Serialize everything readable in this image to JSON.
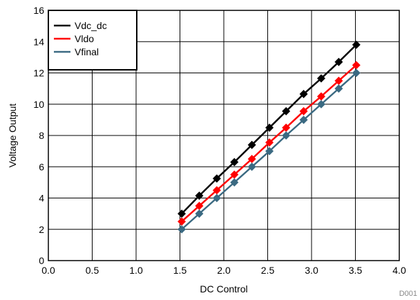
{
  "chart_data": {
    "type": "line",
    "title": "",
    "xlabel": "DC Control",
    "ylabel": "Voltage Output",
    "xlim": [
      0,
      4
    ],
    "ylim": [
      0,
      16
    ],
    "xticks": [
      "0.0",
      "0.5",
      "1.0",
      "1.5",
      "2.0",
      "2.5",
      "3.0",
      "3.5",
      "4.0"
    ],
    "yticks": [
      "0",
      "2",
      "4",
      "6",
      "8",
      "10",
      "12",
      "14",
      "16"
    ],
    "grid": true,
    "legend_position": "top-left",
    "figure_id": "D001",
    "x": [
      1.52,
      1.72,
      1.92,
      2.12,
      2.32,
      2.52,
      2.71,
      2.91,
      3.11,
      3.31,
      3.51
    ],
    "series": [
      {
        "name": "Vdc_dc",
        "color": "#000000",
        "values": [
          3.0,
          4.15,
          5.25,
          6.3,
          7.4,
          8.5,
          9.55,
          10.65,
          11.65,
          12.7,
          13.8
        ]
      },
      {
        "name": "Vldo",
        "color": "#ff0000",
        "values": [
          2.5,
          3.5,
          4.5,
          5.5,
          6.5,
          7.55,
          8.5,
          9.55,
          10.5,
          11.5,
          12.5
        ]
      },
      {
        "name": "Vfinal",
        "color": "#3b6a82",
        "values": [
          2.0,
          3.0,
          4.0,
          5.0,
          6.0,
          7.0,
          8.0,
          9.0,
          10.0,
          11.0,
          12.0
        ]
      }
    ]
  }
}
